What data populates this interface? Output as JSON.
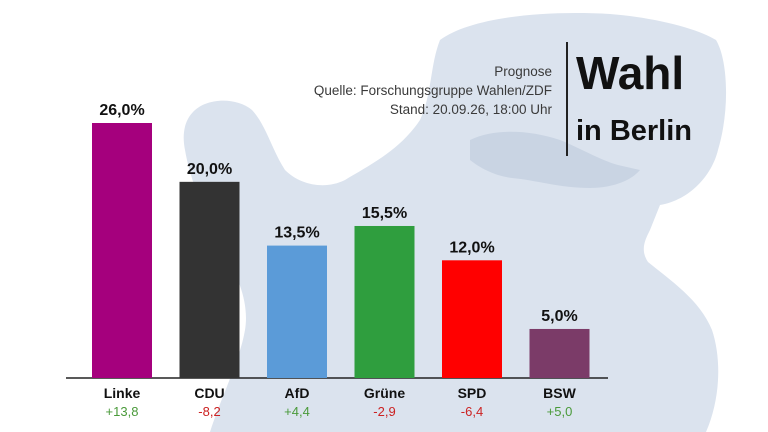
{
  "header": {
    "prognose": "Prognose",
    "source": "Quelle: Forschungsgruppe Wahlen/ZDF",
    "stand": "Stand: 20.09.26, 18:00 Uhr",
    "brand_line1": "Wahl",
    "brand_line2": "in Berlin"
  },
  "colors": {
    "Linke": "#a5007d",
    "CDU": "#333333",
    "AfD": "#5b9bd8",
    "Grüne": "#2f9e3e",
    "SPD": "#ff0000",
    "BSW": "#7b3b68",
    "positive_change": "#4a9a3a",
    "negative_change": "#cc2222"
  },
  "chart_data": {
    "type": "bar",
    "categories": [
      "Linke",
      "CDU",
      "AfD",
      "Grüne",
      "SPD",
      "BSW"
    ],
    "values": [
      26.0,
      20.0,
      13.5,
      15.5,
      12.0,
      5.0
    ],
    "value_labels": [
      "26,0%",
      "20,0%",
      "13,5%",
      "15,5%",
      "12,0%",
      "5,0%"
    ],
    "changes": [
      "+13,8",
      "-8,2",
      "+4,4",
      "-2,9",
      "-6,4",
      "+5,0"
    ],
    "ylim": [
      0,
      26
    ],
    "grid": false,
    "legend": "none"
  }
}
